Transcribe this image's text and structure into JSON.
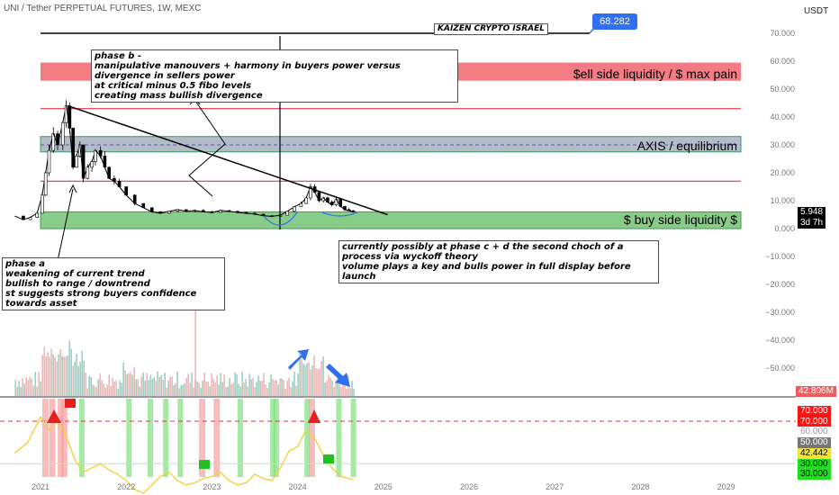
{
  "header": {
    "symbol_line": "UNI / Tether PERPETUAL FUTURES, 1W, MEXC",
    "currency": "USDT"
  },
  "author_label": "KAIZEN CRYPTO ISRAEL",
  "callout_price": "68.282",
  "zones": {
    "sell": "$ell side liquidity / $ max pain",
    "axis": "AXIS / equilibrium",
    "buy": "$ buy side liquidity $"
  },
  "notes": {
    "phase_b": "phase b -\nmanipulative manouvers + harmony in buyers power versus divergence in sellers power\nat critical minus 0.5 fibo levels\ncreating mass bullish divergence",
    "phase_a": "phase a\nweakening of current trend\nbullish to range / downtrend\nst suggests strong buyers confidence towards asset",
    "phase_cd": "currently possibly at phase c + d the second choch of a process via wyckoff theory\nvolume plays a key and bulls power in full display before launch"
  },
  "price_tags": {
    "last": "5.948",
    "countdown": "3d 7h",
    "volume": "42.806M",
    "osc_values": [
      "70.000",
      "70.000",
      "60.000",
      "50.000",
      "42.442",
      "30.000",
      "30.000"
    ]
  },
  "colors": {
    "sell_zone": "#f0646e",
    "axis_zone": "#9aa6b4",
    "buy_zone": "#7cc77c",
    "candle": "#000000",
    "osc_line": "#f2d23c",
    "arrow": "#2f6ff0"
  },
  "chart_data": {
    "type": "line",
    "title": "",
    "xlabel": "",
    "ylabel": "",
    "x_ticks": [
      "2021",
      "2022",
      "2023",
      "2024",
      "2025",
      "2026",
      "2027",
      "2028",
      "2029"
    ],
    "y_ticks": [
      "70.000",
      "60.000",
      "50.000",
      "40.000",
      "30.000",
      "20.000",
      "10.000",
      "0.000",
      "−10.000",
      "−20.000",
      "−30.000",
      "−40.000",
      "−50.000"
    ],
    "ylim": [
      -55,
      75
    ],
    "levels": {
      "sell_zone": [
        53,
        59.5
      ],
      "resistance_high": 43,
      "axis_zone": [
        27.5,
        33
      ],
      "axis_mid": 30,
      "resistance_low": 17,
      "buy_zone": [
        0,
        6
      ],
      "top_line": 70,
      "callout": 68.282
    },
    "trendline": {
      "from": [
        2021.32,
        44
      ],
      "to": [
        2025.05,
        5
      ]
    },
    "series": [
      {
        "values": [
          [
            2020.7,
            4.5
          ],
          [
            2020.8,
            3.2
          ],
          [
            2020.88,
            4.0
          ],
          [
            2020.96,
            5.5
          ],
          [
            2021.02,
            12
          ],
          [
            2021.06,
            20
          ],
          [
            2021.1,
            28
          ],
          [
            2021.15,
            34
          ],
          [
            2021.2,
            30
          ],
          [
            2021.26,
            38
          ],
          [
            2021.3,
            44
          ],
          [
            2021.34,
            36
          ],
          [
            2021.38,
            22
          ],
          [
            2021.42,
            26
          ],
          [
            2021.46,
            30
          ],
          [
            2021.5,
            18
          ],
          [
            2021.55,
            22
          ],
          [
            2021.6,
            24
          ],
          [
            2021.64,
            28
          ],
          [
            2021.7,
            26
          ],
          [
            2021.75,
            22
          ],
          [
            2021.8,
            18
          ],
          [
            2021.86,
            17
          ],
          [
            2021.92,
            15
          ],
          [
            2022.0,
            12
          ],
          [
            2022.1,
            9
          ],
          [
            2022.2,
            7.5
          ],
          [
            2022.3,
            6
          ],
          [
            2022.4,
            5.5
          ],
          [
            2022.5,
            6.2
          ],
          [
            2022.6,
            6.8
          ],
          [
            2022.7,
            6.2
          ],
          [
            2022.8,
            6.5
          ],
          [
            2022.9,
            6.0
          ],
          [
            2023.0,
            5.8
          ],
          [
            2023.1,
            6.5
          ],
          [
            2023.2,
            6.2
          ],
          [
            2023.3,
            5.8
          ],
          [
            2023.4,
            5.5
          ],
          [
            2023.5,
            5.2
          ],
          [
            2023.6,
            4.6
          ],
          [
            2023.7,
            4.4
          ],
          [
            2023.8,
            4.8
          ],
          [
            2023.88,
            6.2
          ],
          [
            2023.96,
            7.8
          ],
          [
            2024.04,
            9.0
          ],
          [
            2024.1,
            11
          ],
          [
            2024.15,
            15
          ],
          [
            2024.2,
            13
          ],
          [
            2024.25,
            10
          ],
          [
            2024.3,
            11
          ],
          [
            2024.35,
            9.5
          ],
          [
            2024.4,
            8.5
          ],
          [
            2024.45,
            10.5
          ],
          [
            2024.5,
            8.0
          ],
          [
            2024.55,
            6.8
          ],
          [
            2024.6,
            6.4
          ],
          [
            2024.65,
            5.948
          ]
        ]
      },
      {
        "name": "",
        "values": [
          [
            2020.7,
            55
          ],
          [
            2020.85,
            60
          ],
          [
            2021.0,
            72
          ],
          [
            2021.1,
            66
          ],
          [
            2021.2,
            70
          ],
          [
            2021.3,
            63
          ],
          [
            2021.4,
            52
          ],
          [
            2021.5,
            46
          ],
          [
            2021.6,
            48
          ],
          [
            2021.7,
            50
          ],
          [
            2021.8,
            47
          ],
          [
            2021.9,
            45
          ],
          [
            2022.0,
            42
          ],
          [
            2022.1,
            38
          ],
          [
            2022.2,
            36
          ],
          [
            2022.3,
            40
          ],
          [
            2022.4,
            44
          ],
          [
            2022.5,
            46
          ],
          [
            2022.6,
            42
          ],
          [
            2022.7,
            40
          ],
          [
            2022.8,
            41
          ],
          [
            2022.9,
            43
          ],
          [
            2023.0,
            44
          ],
          [
            2023.1,
            46
          ],
          [
            2023.2,
            42
          ],
          [
            2023.3,
            40
          ],
          [
            2023.4,
            41
          ],
          [
            2023.5,
            45
          ],
          [
            2023.6,
            43
          ],
          [
            2023.7,
            42
          ],
          [
            2023.8,
            48
          ],
          [
            2023.9,
            56
          ],
          [
            2024.0,
            58
          ],
          [
            2024.1,
            66
          ],
          [
            2024.2,
            62
          ],
          [
            2024.3,
            54
          ],
          [
            2024.4,
            48
          ],
          [
            2024.5,
            44
          ],
          [
            2024.6,
            43
          ],
          [
            2024.65,
            42.442
          ]
        ]
      }
    ]
  }
}
